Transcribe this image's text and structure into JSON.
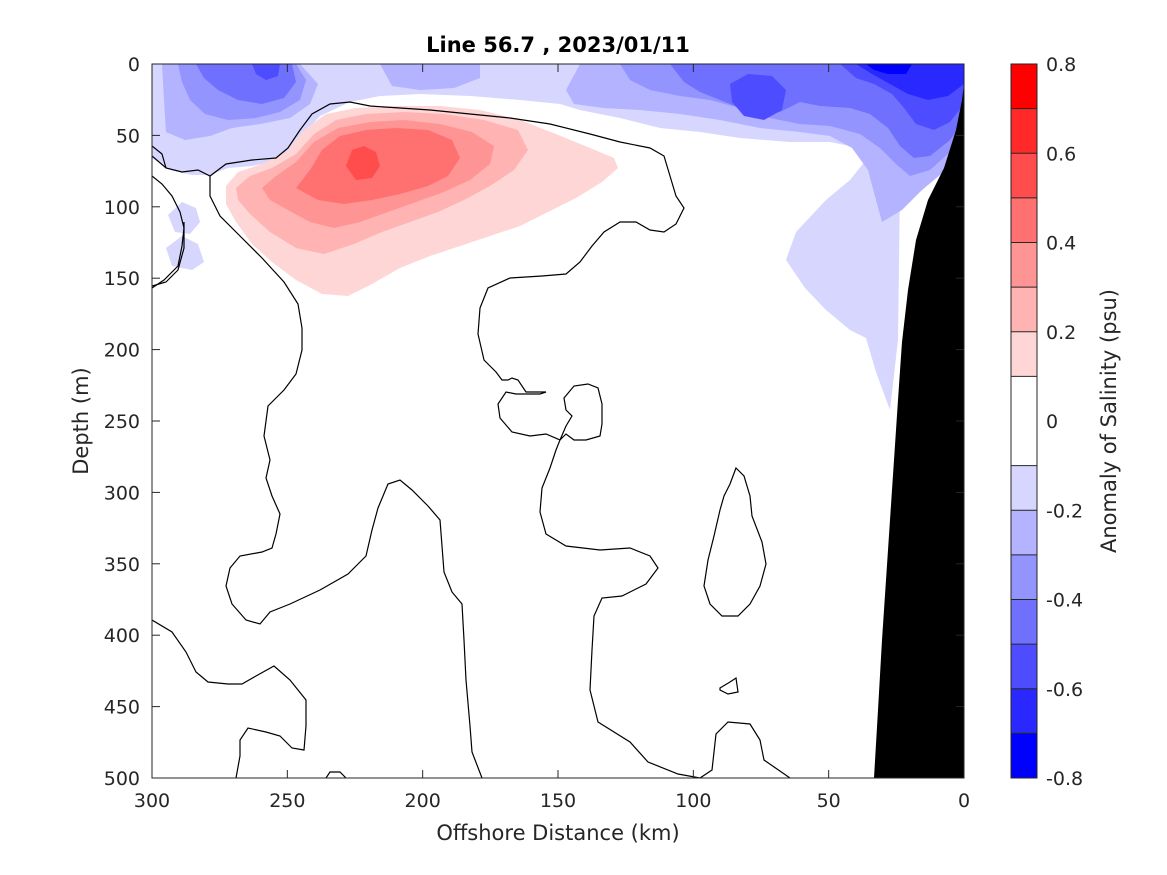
{
  "chart_data": {
    "type": "heatmap",
    "subtype": "filled-contour section",
    "title": "Line 56.7 , 2023/01/11",
    "xlabel": "Offshore Distance (km)",
    "ylabel": "Depth (m)",
    "xlim": [
      300,
      0
    ],
    "ylim": [
      0,
      500
    ],
    "x_reversed": true,
    "y_reversed": true,
    "x_ticks": [
      300,
      250,
      200,
      150,
      100,
      50,
      0
    ],
    "y_ticks": [
      0,
      50,
      100,
      150,
      200,
      250,
      300,
      350,
      400,
      450,
      500
    ],
    "colorbar": {
      "label": "Anomaly of Salinity (psu)",
      "limits": [
        -0.8,
        0.8
      ],
      "ticks": [
        "-0.8",
        "-0.6",
        "-0.4",
        "-0.2",
        "0",
        "0.2",
        "0.4",
        "0.6",
        "0.8"
      ],
      "levels": [
        -0.8,
        -0.7,
        -0.6,
        -0.5,
        -0.4,
        -0.3,
        -0.2,
        -0.1,
        0.1,
        0.2,
        0.3,
        0.4,
        0.5,
        0.6,
        0.7,
        0.8
      ],
      "colors": [
        "#0000ff",
        "#2929ff",
        "#4d4dff",
        "#7070ff",
        "#9494ff",
        "#b3b3ff",
        "#d6d6ff",
        "#ffffff",
        "#ffd6d6",
        "#ffb3b3",
        "#ff9494",
        "#ff7070",
        "#ff4d4d",
        "#ff2929",
        "#ff0000"
      ]
    },
    "contour_line_level": 0,
    "features": [
      {
        "name": "positive anomaly core",
        "x_range_km": [
          130,
          270
        ],
        "depth_range_m": [
          50,
          160
        ],
        "max_value": 0.5,
        "center": {
          "x": 222,
          "depth": 72
        }
      },
      {
        "name": "surface negative anomaly",
        "x_range_km": [
          0,
          300
        ],
        "depth_range_m": [
          0,
          70
        ],
        "min_value": -0.7,
        "center": {
          "x": 20,
          "depth": 5
        }
      },
      {
        "name": "nearshore negative anomaly",
        "x_range_km": [
          0,
          65
        ],
        "depth_range_m": [
          60,
          240
        ],
        "value": -0.1
      }
    ],
    "land_mask": {
      "color": "#000000",
      "bottom_x_range_km": [
        0,
        33
      ],
      "top_x_km": 0,
      "top_depth_m": 35
    }
  }
}
